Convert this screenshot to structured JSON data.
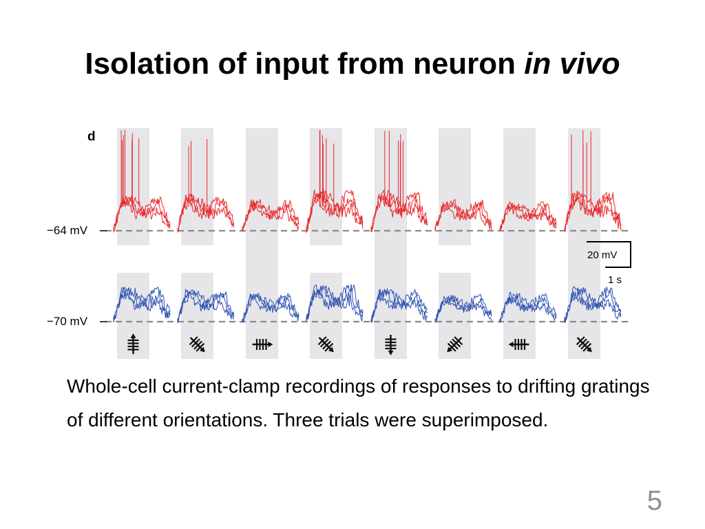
{
  "slide": {
    "title_main": "Isolation of input from neuron ",
    "title_emph": "in vivo",
    "caption": "Whole-cell current-clamp recordings of responses to drifting gratings of different orientations. Three trials were superimposed.",
    "page_number": "5"
  },
  "figure": {
    "panel_label": "d",
    "top_row": {
      "baseline_label": "−64 mV",
      "color": "#e8262a"
    },
    "bottom_row": {
      "baseline_label": "−70 mV",
      "color": "#2b4fb0"
    },
    "scale_bar": {
      "voltage_label": "20 mV",
      "time_label": "1 s"
    },
    "stimulus_icons": [
      "grating-up-icon",
      "grating-diag-down-right-icon",
      "grating-right-icon",
      "grating-diag-down-right-icon",
      "grating-down-icon",
      "grating-diag-down-left-icon",
      "grating-left-icon",
      "grating-diag-down-right-icon"
    ],
    "band_color": "#e6e6e8"
  }
}
